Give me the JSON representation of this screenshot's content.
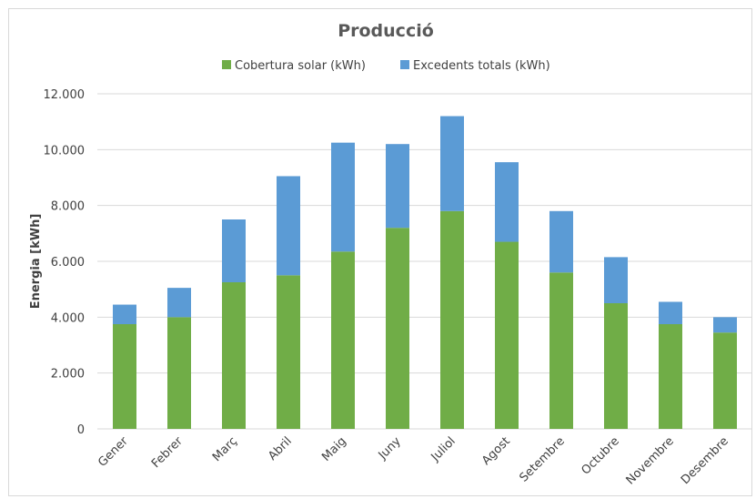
{
  "chart_data": {
    "type": "bar",
    "stacked": true,
    "title": "Producció",
    "ylabel": "Energia [kWh]",
    "xlabel": "",
    "ylim": [
      0,
      12000
    ],
    "yticks": [
      0,
      2000,
      4000,
      6000,
      8000,
      10000,
      12000
    ],
    "ytick_labels": [
      "0",
      "2.000",
      "4.000",
      "6.000",
      "8.000",
      "10.000",
      "12.000"
    ],
    "categories": [
      "Gener",
      "Febrer",
      "Març",
      "Abril",
      "Maig",
      "Juny",
      "Juliol",
      "Agost",
      "Setembre",
      "Octubre",
      "Novembre",
      "Desembre"
    ],
    "series": [
      {
        "name": "Cobertura solar (kWh)",
        "color": "#70ad47",
        "values": [
          3750,
          4000,
          5250,
          5500,
          6350,
          7200,
          7800,
          6700,
          5600,
          4500,
          3750,
          3450
        ]
      },
      {
        "name": "Excedents totals (kWh)",
        "color": "#5b9bd5",
        "values": [
          700,
          1050,
          2250,
          3550,
          3900,
          3000,
          3400,
          2850,
          2200,
          1650,
          800,
          550
        ]
      }
    ],
    "legend_position": "top",
    "grid": true
  }
}
